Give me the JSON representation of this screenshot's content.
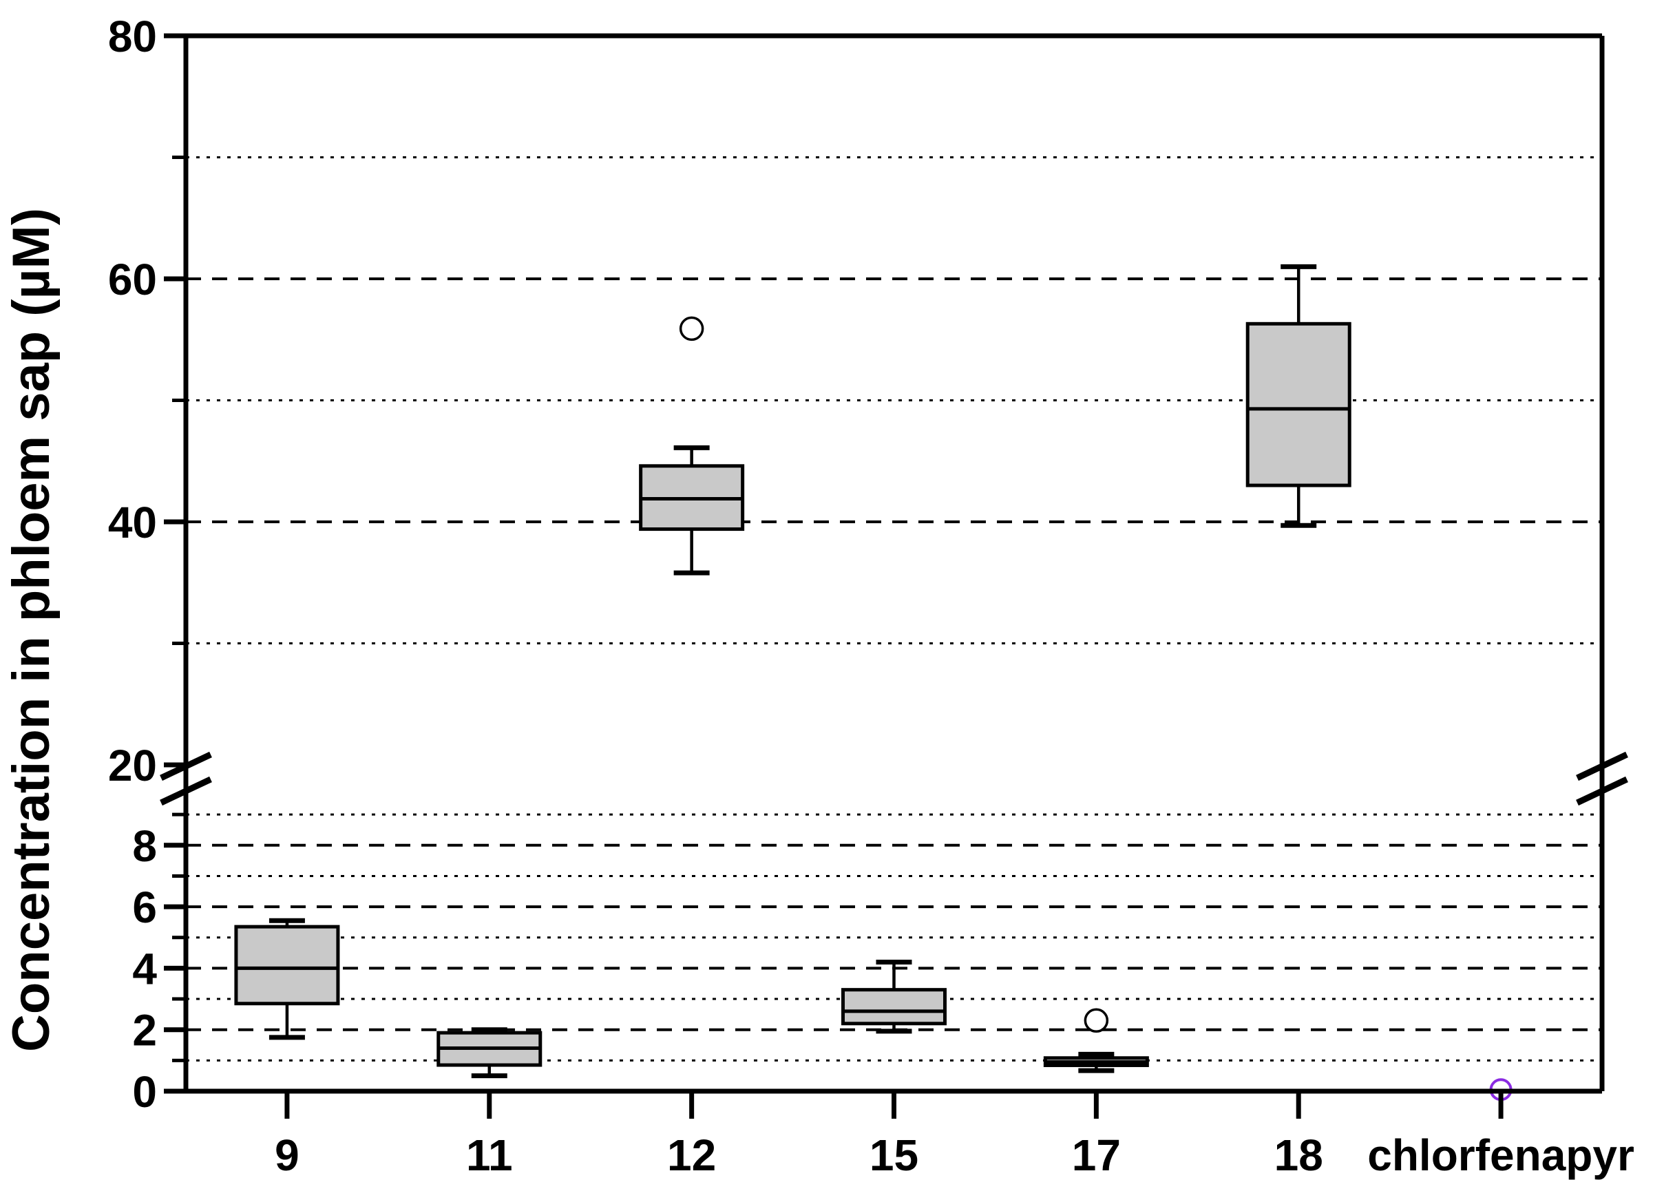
{
  "figure": {
    "background": "#ffffff"
  },
  "chart_data": {
    "type": "boxplot",
    "title": "",
    "xlabel": "",
    "ylabel": "Concentration in phloem sap (µM)",
    "categories": [
      "9",
      "11",
      "12",
      "15",
      "17",
      "18",
      "chlorfenapyr"
    ],
    "y_axis": {
      "broken": true,
      "lower_section_range": [
        0,
        9.6
      ],
      "upper_section_range": [
        20,
        80
      ],
      "break_between": [
        9.6,
        20
      ],
      "ticks": [
        {
          "value": 80,
          "label": "80",
          "major": true,
          "grid": "none"
        },
        {
          "value": 70,
          "label": "",
          "major": false,
          "grid": "dotted"
        },
        {
          "value": 60,
          "label": "60",
          "major": true,
          "grid": "dashed"
        },
        {
          "value": 50,
          "label": "",
          "major": false,
          "grid": "dotted"
        },
        {
          "value": 40,
          "label": "40",
          "major": true,
          "grid": "dashed"
        },
        {
          "value": 30,
          "label": "",
          "major": false,
          "grid": "dotted"
        },
        {
          "value": 20,
          "label": "20",
          "major": true,
          "grid": "none"
        },
        {
          "value": 9,
          "label": "",
          "major": false,
          "grid": "dotted"
        },
        {
          "value": 8,
          "label": "8",
          "major": true,
          "grid": "dashed"
        },
        {
          "value": 7,
          "label": "",
          "major": false,
          "grid": "dotted"
        },
        {
          "value": 6,
          "label": "6",
          "major": true,
          "grid": "dashed"
        },
        {
          "value": 5,
          "label": "",
          "major": false,
          "grid": "dotted"
        },
        {
          "value": 4,
          "label": "4",
          "major": true,
          "grid": "dashed"
        },
        {
          "value": 3,
          "label": "",
          "major": false,
          "grid": "dotted"
        },
        {
          "value": 2,
          "label": "2",
          "major": true,
          "grid": "dashed"
        },
        {
          "value": 1,
          "label": "",
          "major": false,
          "grid": "dotted"
        },
        {
          "value": 0,
          "label": "0",
          "major": true,
          "grid": "none"
        }
      ]
    },
    "series": [
      {
        "category": "9",
        "whisker_low": 1.75,
        "q1": 2.85,
        "median": 4.0,
        "q3": 5.35,
        "whisker_high": 5.55,
        "outliers": []
      },
      {
        "category": "11",
        "whisker_low": 0.5,
        "q1": 0.85,
        "median": 1.4,
        "q3": 1.9,
        "whisker_high": 2.0,
        "outliers": []
      },
      {
        "category": "12",
        "whisker_low": 35.8,
        "q1": 39.4,
        "median": 41.9,
        "q3": 44.6,
        "whisker_high": 46.1,
        "outliers": [
          55.9
        ]
      },
      {
        "category": "15",
        "whisker_low": 1.95,
        "q1": 2.2,
        "median": 2.6,
        "q3": 3.3,
        "whisker_high": 4.2,
        "outliers": []
      },
      {
        "category": "17",
        "whisker_low": 0.67,
        "q1": 0.84,
        "median": 0.95,
        "q3": 1.08,
        "whisker_high": 1.2,
        "outliers": [
          2.3
        ]
      },
      {
        "category": "18",
        "whisker_low": 39.7,
        "q1": 43.0,
        "median": 49.3,
        "q3": 56.3,
        "whisker_high": 61.0,
        "outliers": []
      },
      {
        "category": "chlorfenapyr",
        "single_point": 0.05
      }
    ],
    "colors": {
      "box_fill": "#c9c9c9",
      "line": "#000000",
      "outlier_stroke": "#000000",
      "special_point_stroke": "#8A2BE2"
    },
    "grid": "horizontal, dashed on labeled ticks, dotted on minor ticks",
    "legend": null
  }
}
